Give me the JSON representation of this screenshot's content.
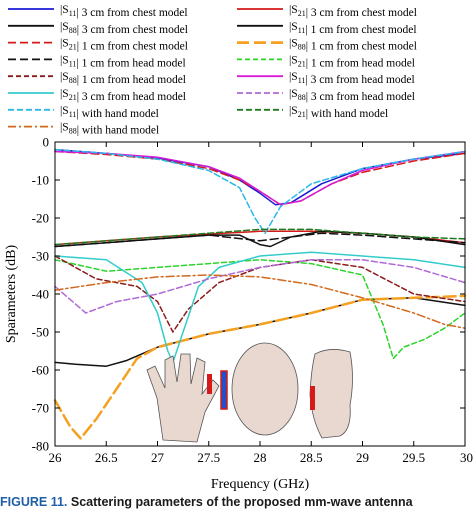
{
  "chart_data": {
    "type": "line",
    "xlabel": "Frequency (GHz)",
    "ylabel": "Sparameters (dB)",
    "xlim": [
      26,
      30
    ],
    "ylim": [
      -80,
      0
    ],
    "x_ticks": [
      "26",
      "26.5",
      "27",
      "27.5",
      "28",
      "28.5",
      "29",
      "29.5",
      "30"
    ],
    "y_ticks": [
      "0",
      "-10",
      "-20",
      "-30",
      "-40",
      "-50",
      "-60",
      "-70",
      "-80"
    ],
    "grid": false,
    "legend": [
      "|S11| 3 cm  from chest model",
      "|S21| 3 cm  from chest model",
      "|S88|  3 cm  from chest model",
      "|S11|  1 cm  from chest model",
      "|S21|  1 cm  from chest model",
      "|S88|  1 cm  from chest model",
      "|S11|  1 cm  from head model",
      "|S21|  1 cm  from head model",
      "|S88|  1 cm  from head model",
      "|S11|  3 cm  from head model",
      "|S21|  3 cm  from head model",
      "|S88|  3 cm  from head model",
      "|S11|  with hand model",
      "|S21|  with hand model",
      "|S88|  with hand model"
    ],
    "series": [
      {
        "name": "|S11| 3 cm  from chest model",
        "color": "#1a1ad6",
        "dash": "solid",
        "width": 1.5,
        "points": [
          [
            26,
            -2
          ],
          [
            26.5,
            -3
          ],
          [
            27,
            -4.2
          ],
          [
            27.5,
            -6.5
          ],
          [
            27.8,
            -10
          ],
          [
            28,
            -13.5
          ],
          [
            28.15,
            -16.5
          ],
          [
            28.3,
            -16
          ],
          [
            28.6,
            -11
          ],
          [
            29,
            -7
          ],
          [
            29.5,
            -4.5
          ],
          [
            30,
            -3
          ]
        ]
      },
      {
        "name": "|S21| 3 cm  from chest model",
        "color": "#d61a1a",
        "dash": "solid",
        "width": 1.5,
        "points": [
          [
            26,
            -27
          ],
          [
            26.5,
            -26
          ],
          [
            27,
            -25
          ],
          [
            27.5,
            -24.2
          ],
          [
            28,
            -23.5
          ],
          [
            28.5,
            -23.5
          ],
          [
            29,
            -24
          ],
          [
            29.5,
            -25
          ],
          [
            30,
            -26.5
          ]
        ]
      },
      {
        "name": "|S88|  3 cm  from chest model",
        "color": "#111111",
        "dash": "solid",
        "width": 1.5,
        "points": [
          [
            26,
            -58
          ],
          [
            26.2,
            -58.5
          ],
          [
            26.5,
            -59
          ],
          [
            26.7,
            -57.5
          ],
          [
            27,
            -54
          ],
          [
            27.5,
            -50.5
          ],
          [
            28,
            -48
          ],
          [
            28.5,
            -45
          ],
          [
            29,
            -41.5
          ],
          [
            29.5,
            -41
          ],
          [
            30,
            -43
          ]
        ]
      },
      {
        "name": "|S11|  1 cm  from chest model",
        "color": "#111111",
        "dash": "solid",
        "width": 1.5,
        "points": [
          [
            26,
            -27.5
          ],
          [
            26.5,
            -26.5
          ],
          [
            27,
            -25.5
          ],
          [
            27.5,
            -24.5
          ],
          [
            27.8,
            -24.5
          ],
          [
            28,
            -27
          ],
          [
            28.1,
            -27.5
          ],
          [
            28.3,
            -25
          ],
          [
            28.6,
            -23.5
          ],
          [
            29,
            -24
          ],
          [
            29.5,
            -25
          ],
          [
            30,
            -27
          ]
        ]
      },
      {
        "name": "|S21|  1 cm  from chest model",
        "color": "#d61a1a",
        "dash": "8,4",
        "width": 1.5,
        "points": [
          [
            26,
            -2.5
          ],
          [
            26.5,
            -3.3
          ],
          [
            27,
            -4.5
          ],
          [
            27.5,
            -7
          ],
          [
            27.8,
            -10
          ],
          [
            28,
            -13
          ],
          [
            28.2,
            -16.5
          ],
          [
            28.4,
            -15.5
          ],
          [
            28.7,
            -11
          ],
          [
            29,
            -8
          ],
          [
            29.5,
            -5
          ],
          [
            30,
            -3
          ]
        ]
      },
      {
        "name": "|S88|  1 cm  from chest model",
        "color": "#f5a020",
        "dash": "12,5",
        "width": 2.5,
        "points": [
          [
            26,
            -68
          ],
          [
            26.15,
            -75
          ],
          [
            26.25,
            -78
          ],
          [
            26.4,
            -73
          ],
          [
            26.6,
            -65
          ],
          [
            26.8,
            -57
          ],
          [
            27,
            -54
          ],
          [
            27.5,
            -50.5
          ],
          [
            28,
            -48
          ],
          [
            28.5,
            -45
          ],
          [
            29,
            -41.5
          ],
          [
            29.5,
            -41
          ],
          [
            30,
            -40.5
          ]
        ]
      },
      {
        "name": "|S11|  1 cm  from head model",
        "color": "#111111",
        "dash": "8,4",
        "width": 1.5,
        "points": [
          [
            26,
            -27.5
          ],
          [
            26.5,
            -26.5
          ],
          [
            27,
            -25.5
          ],
          [
            27.5,
            -24.5
          ],
          [
            28,
            -26
          ],
          [
            28.3,
            -25
          ],
          [
            28.6,
            -24
          ],
          [
            29,
            -24.5
          ],
          [
            29.5,
            -25.5
          ],
          [
            30,
            -26.5
          ]
        ]
      },
      {
        "name": "|S21|  1 cm  from head model",
        "color": "#2bd42b",
        "dash": "5,3",
        "width": 1.5,
        "points": [
          [
            26,
            -31
          ],
          [
            26.5,
            -34
          ],
          [
            27,
            -33
          ],
          [
            27.5,
            -32
          ],
          [
            28,
            -31
          ],
          [
            28.5,
            -32
          ],
          [
            29,
            -35
          ],
          [
            29.2,
            -48
          ],
          [
            29.3,
            -57
          ],
          [
            29.4,
            -54
          ],
          [
            29.6,
            -52
          ],
          [
            29.8,
            -49
          ],
          [
            30,
            -45
          ]
        ]
      },
      {
        "name": "|S88|  1 cm  from head model",
        "color": "#8b1a1a",
        "dash": "5,3",
        "width": 1.5,
        "points": [
          [
            26,
            -30
          ],
          [
            26.4,
            -36
          ],
          [
            26.8,
            -38
          ],
          [
            27,
            -42
          ],
          [
            27.15,
            -50
          ],
          [
            27.3,
            -44
          ],
          [
            27.6,
            -37
          ],
          [
            28,
            -33
          ],
          [
            28.5,
            -31
          ],
          [
            29,
            -33
          ],
          [
            29.5,
            -40
          ],
          [
            30,
            -42
          ]
        ]
      },
      {
        "name": "|S11|  3 cm  from head model",
        "color": "#d61ad6",
        "dash": "solid",
        "width": 1.5,
        "points": [
          [
            26,
            -2.5
          ],
          [
            26.5,
            -3
          ],
          [
            27,
            -4
          ],
          [
            27.5,
            -6.5
          ],
          [
            27.8,
            -9.5
          ],
          [
            28,
            -13
          ],
          [
            28.2,
            -16.5
          ],
          [
            28.4,
            -15.5
          ],
          [
            28.7,
            -11
          ],
          [
            29,
            -7.5
          ],
          [
            29.5,
            -4.5
          ],
          [
            30,
            -2.5
          ]
        ]
      },
      {
        "name": "|S21|  3 cm  from head model",
        "color": "#33cccc",
        "dash": "solid",
        "width": 1.5,
        "points": [
          [
            26,
            -30
          ],
          [
            26.5,
            -31
          ],
          [
            26.85,
            -37
          ],
          [
            27,
            -45
          ],
          [
            27.1,
            -55
          ],
          [
            27.15,
            -58
          ],
          [
            27.25,
            -50
          ],
          [
            27.4,
            -38
          ],
          [
            27.6,
            -33
          ],
          [
            28,
            -30
          ],
          [
            28.5,
            -29
          ],
          [
            29,
            -30
          ],
          [
            29.5,
            -31
          ],
          [
            30,
            -33
          ]
        ]
      },
      {
        "name": "|S88|  3 cm  from head model",
        "color": "#b06ad6",
        "dash": "6,3",
        "width": 1.5,
        "points": [
          [
            26,
            -38
          ],
          [
            26.3,
            -45
          ],
          [
            26.6,
            -42
          ],
          [
            27,
            -40
          ],
          [
            27.5,
            -36
          ],
          [
            28,
            -33
          ],
          [
            28.5,
            -31
          ],
          [
            29,
            -31
          ],
          [
            29.5,
            -33
          ],
          [
            30,
            -37
          ]
        ]
      },
      {
        "name": "|S11|  with hand model",
        "color": "#29b8e8",
        "dash": "6,3",
        "width": 1.5,
        "points": [
          [
            26,
            -2
          ],
          [
            26.5,
            -3
          ],
          [
            27,
            -4.5
          ],
          [
            27.5,
            -7.5
          ],
          [
            27.8,
            -12
          ],
          [
            27.95,
            -20
          ],
          [
            28.05,
            -24
          ],
          [
            28.2,
            -17
          ],
          [
            28.5,
            -11
          ],
          [
            29,
            -7
          ],
          [
            29.5,
            -4.5
          ],
          [
            30,
            -2.5
          ]
        ]
      },
      {
        "name": "|S21|  with hand model",
        "color": "#1f7a1f",
        "dash": "6,3",
        "width": 1.5,
        "points": [
          [
            26,
            -27
          ],
          [
            26.5,
            -26
          ],
          [
            27,
            -25
          ],
          [
            27.5,
            -24
          ],
          [
            28,
            -23
          ],
          [
            28.5,
            -23
          ],
          [
            29,
            -24
          ],
          [
            29.5,
            -25
          ],
          [
            30,
            -25.5
          ]
        ]
      },
      {
        "name": "|S88|  with hand model",
        "color": "#d2691e",
        "dash": "8,3,2,3",
        "width": 1.5,
        "points": [
          [
            26,
            -39
          ],
          [
            26.5,
            -37
          ],
          [
            27,
            -35.5
          ],
          [
            27.5,
            -35
          ],
          [
            28,
            -35.5
          ],
          [
            28.5,
            -37.5
          ],
          [
            29,
            -41
          ],
          [
            29.5,
            -45
          ],
          [
            29.8,
            -48
          ],
          [
            30,
            -49
          ]
        ]
      }
    ]
  },
  "caption": {
    "number": "FIGURE 11.",
    "text": "Scattering parameters of the proposed mm-wave antenna"
  }
}
